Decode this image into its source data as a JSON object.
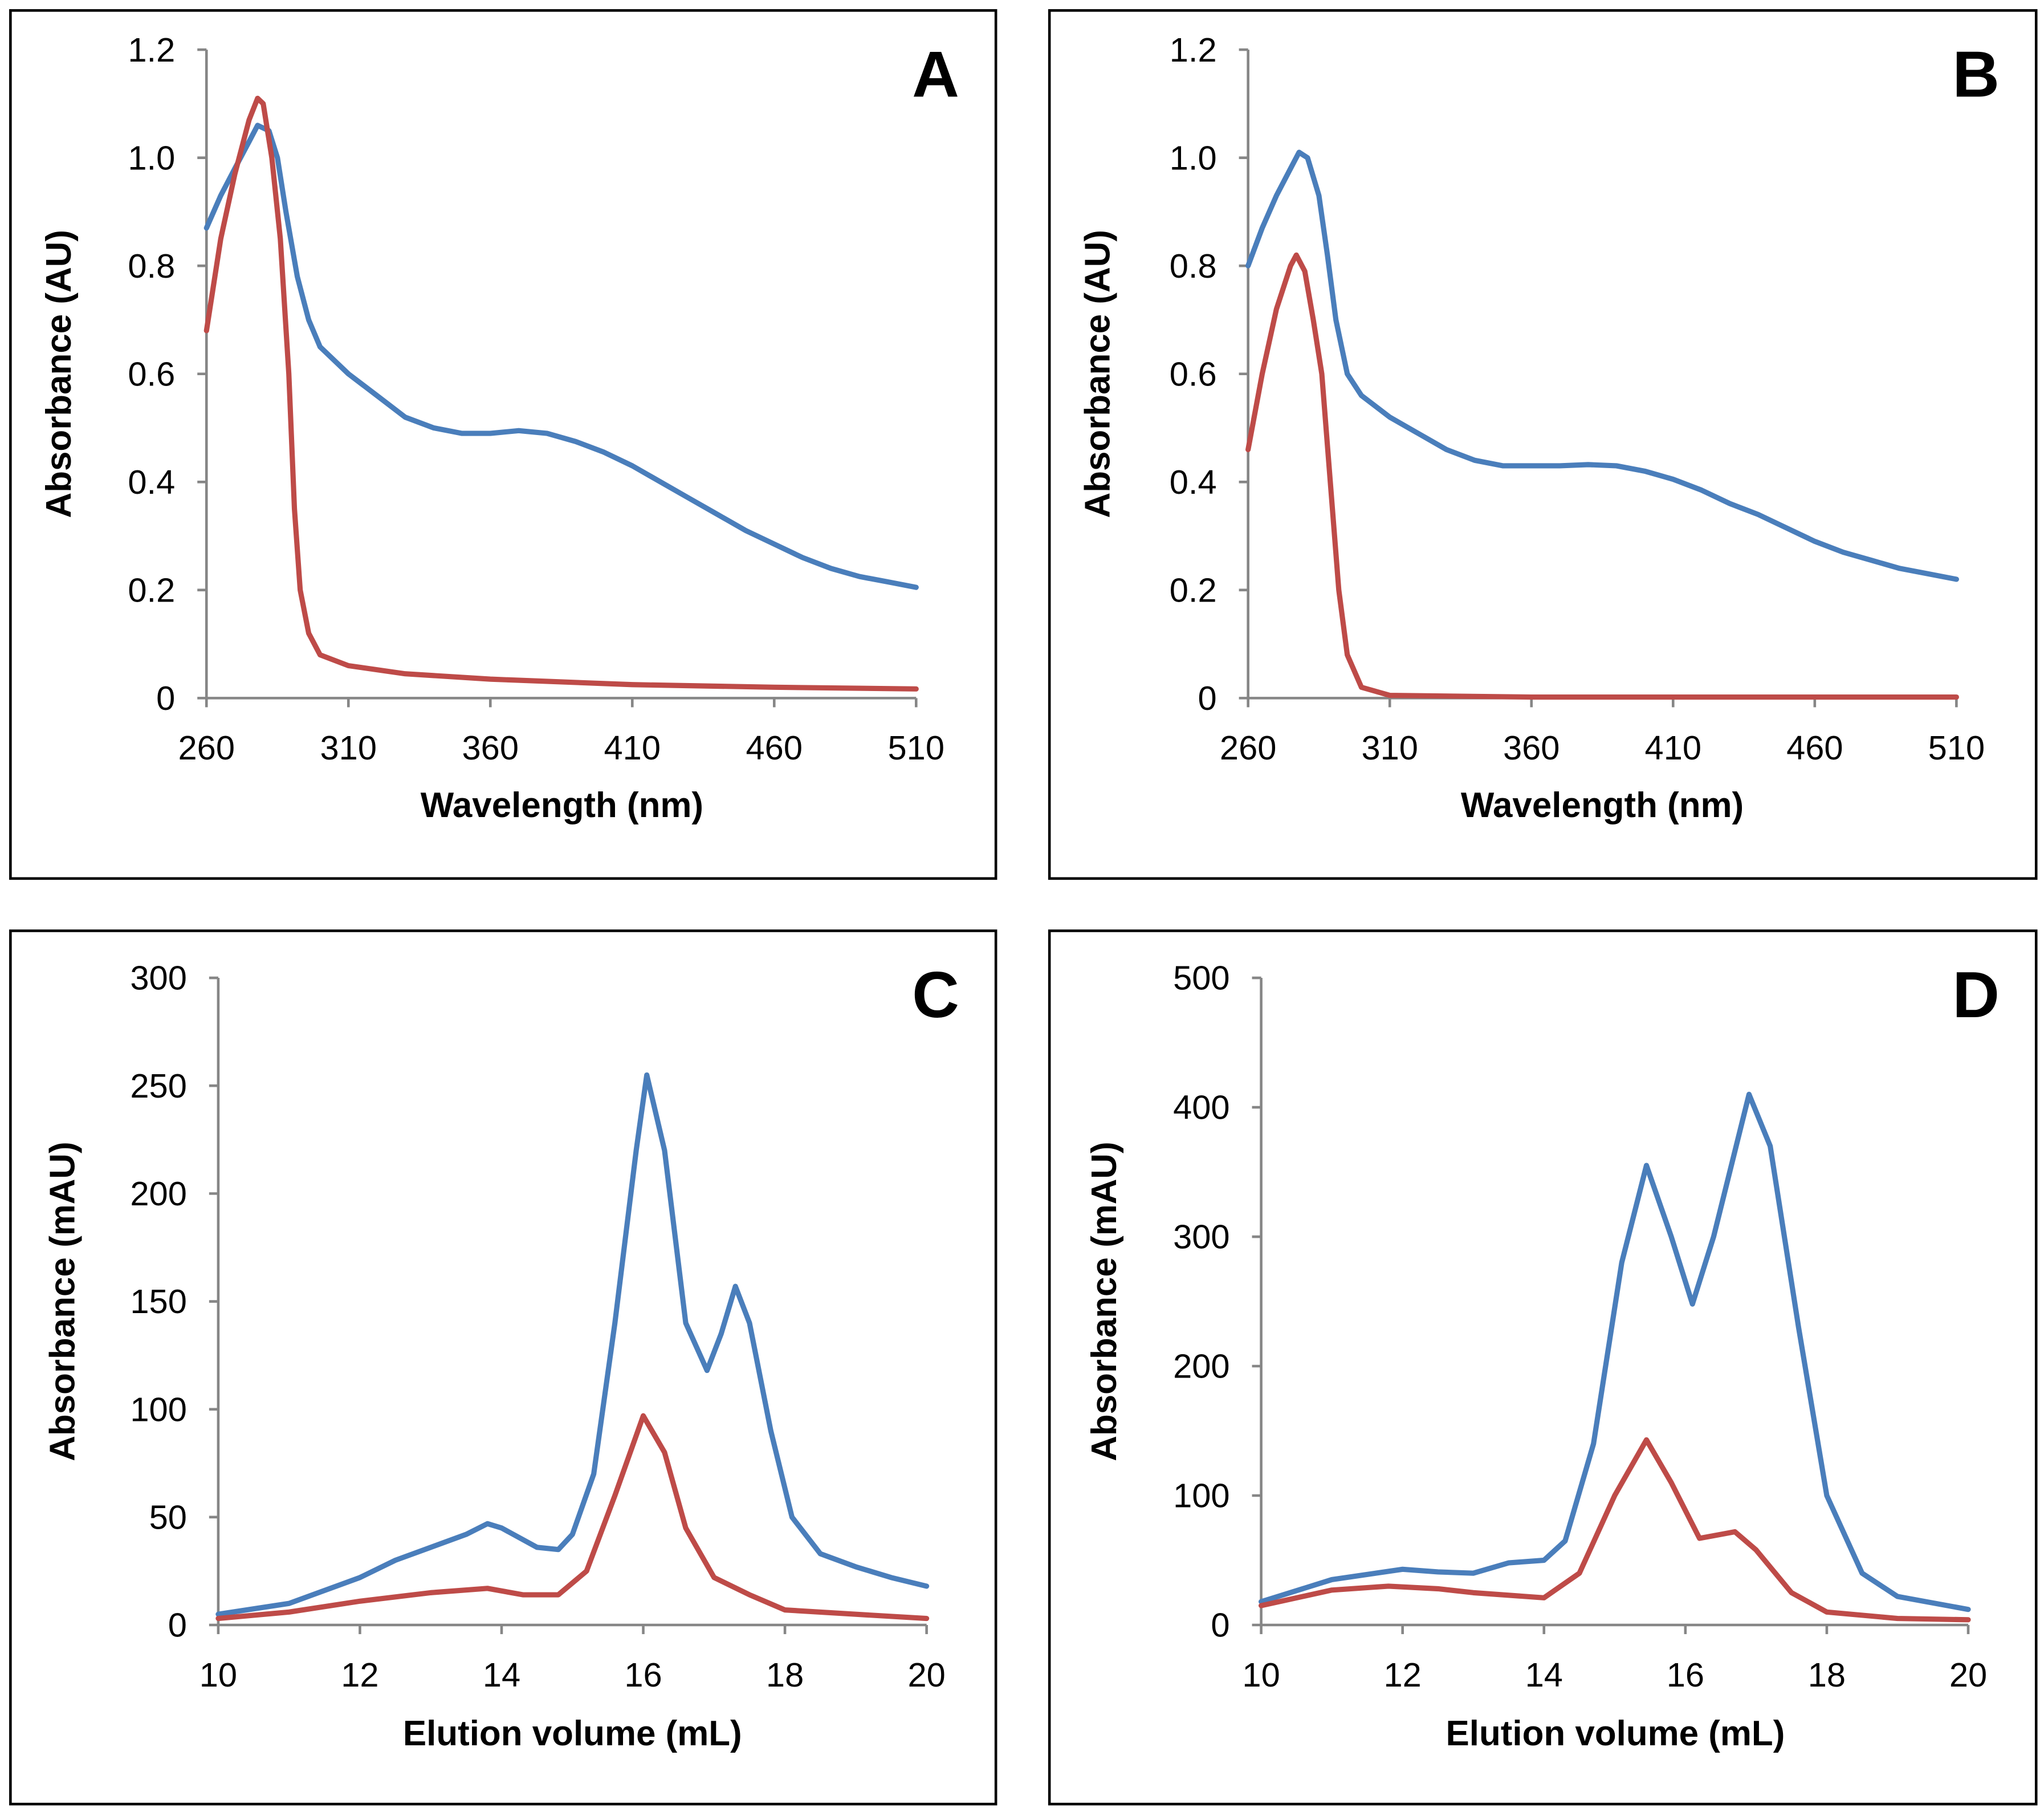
{
  "colors": {
    "series1": "#4a7ebb",
    "series2": "#be4b48",
    "axis": "#868686"
  },
  "chart_data": [
    {
      "type": "line",
      "panel_label": "A",
      "xlabel": "Wavelength  (nm)",
      "ylabel": "Absorbance  (AU)",
      "xlim": [
        260,
        510
      ],
      "ylim": [
        0,
        1.2
      ],
      "xticks": [
        260,
        310,
        360,
        410,
        460,
        510
      ],
      "yticks": [
        0,
        0.2,
        0.4,
        0.6,
        0.8,
        1.0,
        1.2
      ],
      "ytick_labels": [
        "0",
        "0.2",
        "0.4",
        "0.6",
        "0.8",
        "1.0",
        "1.2"
      ],
      "series": [
        {
          "name": "blue",
          "color": "#4a7ebb",
          "x": [
            260,
            265,
            270,
            275,
            278,
            282,
            285,
            288,
            292,
            296,
            300,
            310,
            320,
            330,
            340,
            350,
            360,
            370,
            380,
            390,
            400,
            410,
            420,
            430,
            440,
            450,
            460,
            470,
            480,
            490,
            500,
            510
          ],
          "y": [
            0.87,
            0.93,
            0.98,
            1.03,
            1.06,
            1.05,
            1.0,
            0.9,
            0.78,
            0.7,
            0.65,
            0.6,
            0.56,
            0.52,
            0.5,
            0.49,
            0.49,
            0.495,
            0.49,
            0.475,
            0.455,
            0.43,
            0.4,
            0.37,
            0.34,
            0.31,
            0.285,
            0.26,
            0.24,
            0.225,
            0.215,
            0.205
          ]
        },
        {
          "name": "red",
          "color": "#be4b48",
          "x": [
            260,
            265,
            270,
            275,
            278,
            280,
            283,
            286,
            289,
            291,
            293,
            296,
            300,
            310,
            330,
            360,
            410,
            460,
            510
          ],
          "y": [
            0.68,
            0.85,
            0.97,
            1.07,
            1.11,
            1.1,
            1.0,
            0.85,
            0.6,
            0.35,
            0.2,
            0.12,
            0.08,
            0.06,
            0.045,
            0.035,
            0.025,
            0.02,
            0.017
          ]
        }
      ]
    },
    {
      "type": "line",
      "panel_label": "B",
      "xlabel": "Wavelength  (nm)",
      "ylabel": "Absorbance  (AU)",
      "xlim": [
        260,
        510
      ],
      "ylim": [
        0,
        1.2
      ],
      "xticks": [
        260,
        310,
        360,
        410,
        460,
        510
      ],
      "yticks": [
        0,
        0.2,
        0.4,
        0.6,
        0.8,
        1.0,
        1.2
      ],
      "ytick_labels": [
        "0",
        "0.2",
        "0.4",
        "0.6",
        "0.8",
        "1.0",
        "1.2"
      ],
      "series": [
        {
          "name": "blue",
          "color": "#4a7ebb",
          "x": [
            260,
            265,
            270,
            275,
            278,
            281,
            285,
            288,
            291,
            295,
            300,
            310,
            320,
            330,
            340,
            350,
            360,
            370,
            380,
            390,
            400,
            410,
            420,
            430,
            440,
            450,
            460,
            470,
            480,
            490,
            500,
            510
          ],
          "y": [
            0.8,
            0.87,
            0.93,
            0.98,
            1.01,
            1.0,
            0.93,
            0.82,
            0.7,
            0.6,
            0.56,
            0.52,
            0.49,
            0.46,
            0.44,
            0.43,
            0.43,
            0.43,
            0.432,
            0.43,
            0.42,
            0.405,
            0.385,
            0.36,
            0.34,
            0.315,
            0.29,
            0.27,
            0.255,
            0.24,
            0.23,
            0.22
          ]
        },
        {
          "name": "red",
          "color": "#be4b48",
          "x": [
            260,
            265,
            270,
            275,
            277,
            280,
            283,
            286,
            289,
            292,
            295,
            300,
            310,
            360,
            510
          ],
          "y": [
            0.46,
            0.6,
            0.72,
            0.8,
            0.82,
            0.79,
            0.7,
            0.6,
            0.4,
            0.2,
            0.08,
            0.02,
            0.005,
            0.002,
            0.002
          ]
        }
      ]
    },
    {
      "type": "line",
      "panel_label": "C",
      "xlabel": "Elution volume (mL)",
      "ylabel": "Absorbance  (mAU)",
      "xlim": [
        10,
        20
      ],
      "ylim": [
        0,
        300
      ],
      "xticks": [
        10,
        12,
        14,
        16,
        18,
        20
      ],
      "yticks": [
        0,
        50,
        100,
        150,
        200,
        250,
        300
      ],
      "ytick_labels": [
        "0",
        "50",
        "100",
        "150",
        "200",
        "250",
        "300"
      ],
      "series": [
        {
          "name": "blue",
          "color": "#4a7ebb",
          "x": [
            10,
            11,
            12,
            12.5,
            13,
            13.5,
            13.8,
            14,
            14.5,
            14.8,
            15,
            15.3,
            15.6,
            15.9,
            16.05,
            16.3,
            16.6,
            16.9,
            17.1,
            17.3,
            17.5,
            17.8,
            18.1,
            18.5,
            19,
            19.5,
            20
          ],
          "y": [
            5,
            10,
            22,
            30,
            36,
            42,
            47,
            45,
            36,
            35,
            42,
            70,
            140,
            220,
            255,
            220,
            140,
            118,
            135,
            157,
            140,
            90,
            50,
            33,
            27,
            22,
            18
          ]
        },
        {
          "name": "red",
          "color": "#be4b48",
          "x": [
            10,
            11,
            12,
            13,
            13.8,
            14.3,
            14.8,
            15.2,
            15.6,
            16,
            16.3,
            16.6,
            17,
            17.5,
            18,
            19,
            20
          ],
          "y": [
            3,
            6,
            11,
            15,
            17,
            14,
            14,
            25,
            60,
            97,
            80,
            45,
            22,
            14,
            7,
            5,
            3
          ]
        }
      ]
    },
    {
      "type": "line",
      "panel_label": "D",
      "xlabel": "Elution volume (mL)",
      "ylabel": "Absorbance  (mAU)",
      "xlim": [
        10,
        20
      ],
      "ylim": [
        0,
        500
      ],
      "xticks": [
        10,
        12,
        14,
        16,
        18,
        20
      ],
      "yticks": [
        0,
        100,
        200,
        300,
        400,
        500
      ],
      "ytick_labels": [
        "0",
        "100",
        "200",
        "300",
        "400",
        "500"
      ],
      "series": [
        {
          "name": "blue",
          "color": "#4a7ebb",
          "x": [
            10,
            11,
            12,
            12.5,
            13,
            13.5,
            14,
            14.3,
            14.7,
            15.1,
            15.45,
            15.8,
            16.1,
            16.4,
            16.9,
            17.2,
            17.6,
            18,
            18.5,
            19,
            20
          ],
          "y": [
            18,
            35,
            43,
            41,
            40,
            48,
            50,
            65,
            140,
            280,
            355,
            300,
            248,
            300,
            410,
            370,
            230,
            100,
            40,
            22,
            12
          ]
        },
        {
          "name": "red",
          "color": "#be4b48",
          "x": [
            10,
            11,
            11.8,
            12.5,
            13,
            14,
            14.5,
            15,
            15.45,
            15.8,
            16.2,
            16.5,
            16.7,
            17,
            17.5,
            18,
            19,
            20
          ],
          "y": [
            15,
            27,
            30,
            28,
            25,
            21,
            40,
            100,
            143,
            110,
            67,
            70,
            72,
            58,
            25,
            10,
            5,
            4
          ]
        }
      ]
    }
  ]
}
